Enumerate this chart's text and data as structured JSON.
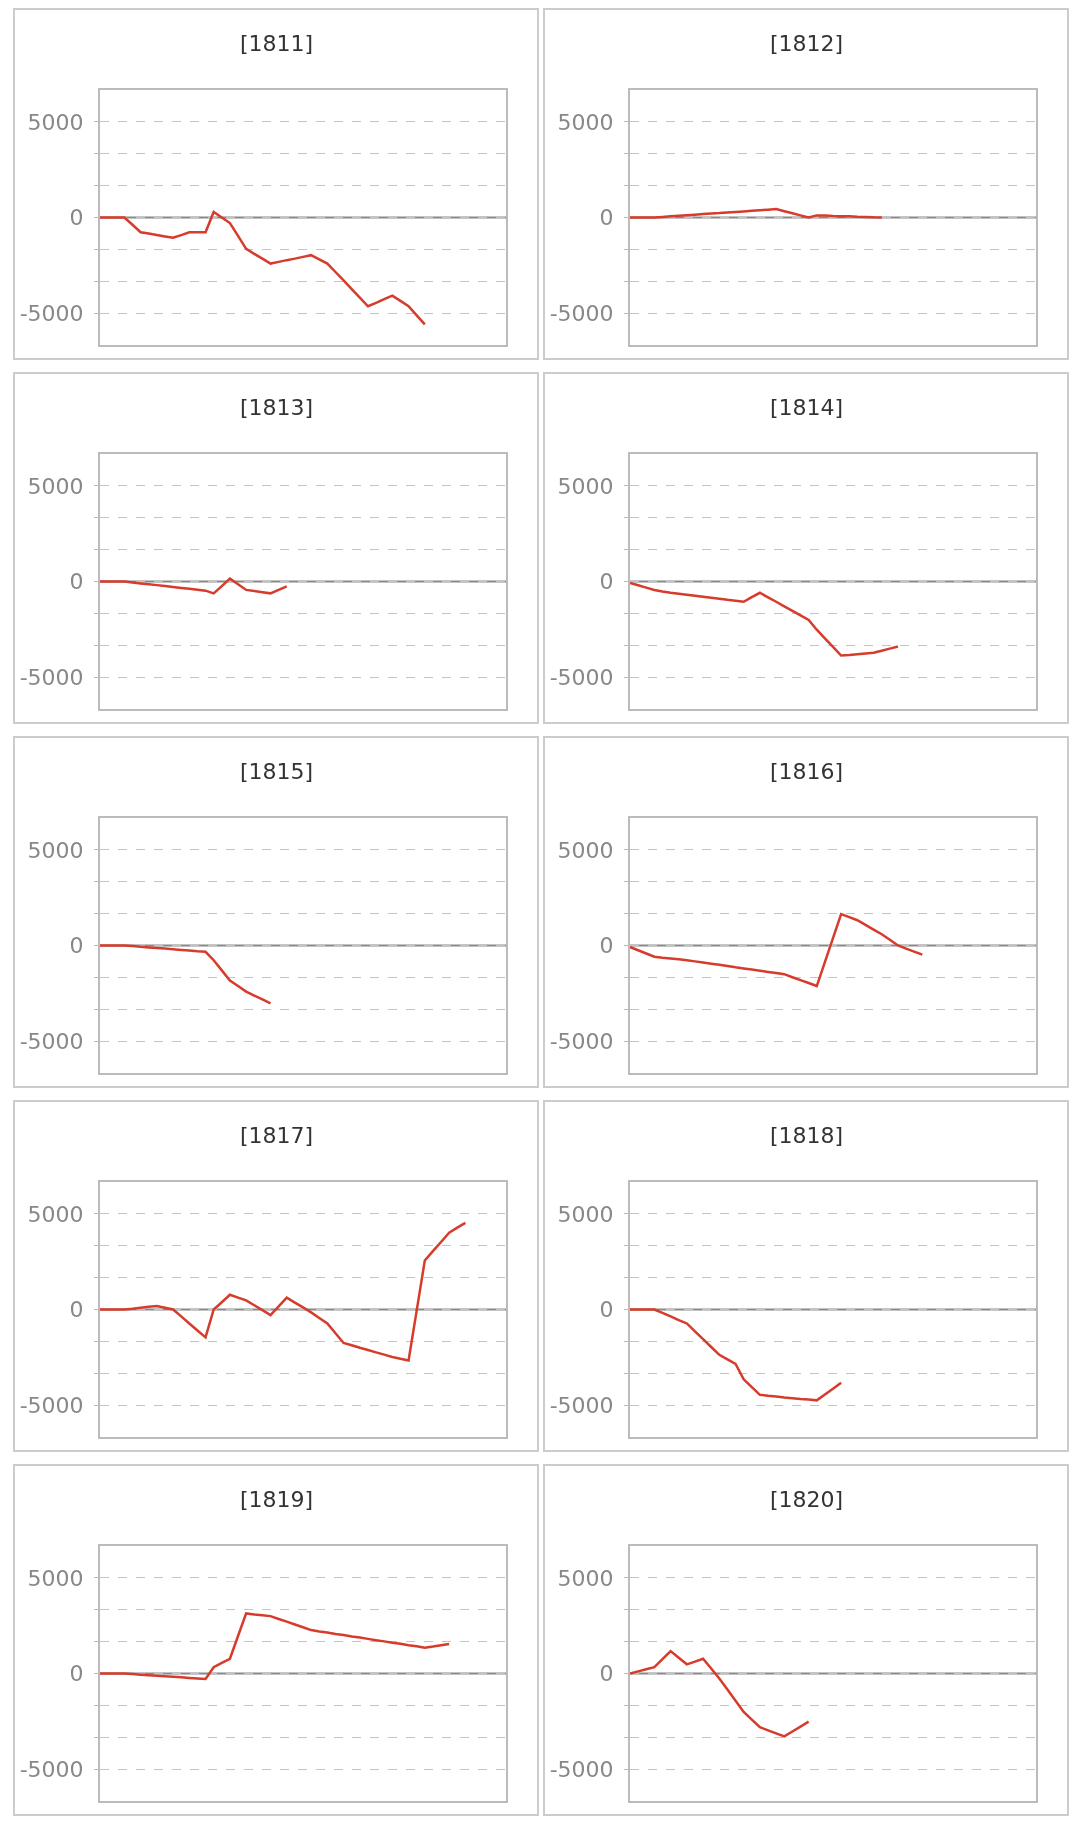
{
  "chart_data": [
    {
      "type": "line",
      "title": "[1811]",
      "categories": [
        null,
        null,
        null,
        null,
        null,
        null,
        null,
        null,
        null,
        null,
        null,
        null,
        null,
        null,
        null,
        null,
        null,
        null,
        null,
        null,
        null,
        null,
        null,
        null,
        null,
        null,
        null,
        null,
        null,
        null,
        null,
        null,
        null,
        null,
        null,
        null,
        null,
        null,
        null,
        null,
        null,
        null,
        null,
        null,
        null,
        null,
        null,
        null,
        null,
        null,
        null
      ],
      "series": [
        {
          "color": "#d63b2b",
          "values": [
            0,
            0,
            0,
            0,
            -380,
            -770,
            -840,
            -920,
            -990,
            -1060,
            -920,
            -770,
            -770,
            -770,
            290,
            0,
            -290,
            -960,
            -1640,
            -1900,
            -2150,
            -2410,
            -2320,
            -2230,
            -2150,
            -2060,
            -1970,
            -2190,
            -2410,
            -2850,
            -3290,
            -3740,
            -4190,
            -4640,
            -4460,
            -4270,
            -4090,
            -4360,
            -4640,
            -5120,
            -5590,
            null,
            null,
            null,
            null,
            null,
            null,
            null,
            null,
            null,
            null
          ]
        }
      ],
      "ylim": [
        -6667,
        6667
      ],
      "yticks": [
        -5000,
        {
          "value": -3333,
          "label": null
        },
        {
          "value": -1667,
          "label": null
        },
        0,
        {
          "value": 1667,
          "label": null
        },
        {
          "value": 3333,
          "label": null
        },
        5000
      ],
      "grid": "y",
      "tick_labels": "y",
      "ref_lines": [
        {
          "axis": "y",
          "value": 0,
          "color": "#888888"
        }
      ]
    },
    {
      "type": "line",
      "title": "[1812]",
      "categories": [
        null,
        null,
        null,
        null,
        null,
        null,
        null,
        null,
        null,
        null,
        null,
        null,
        null,
        null,
        null,
        null,
        null,
        null,
        null,
        null,
        null,
        null,
        null,
        null,
        null,
        null,
        null,
        null,
        null,
        null,
        null,
        null,
        null,
        null,
        null,
        null,
        null,
        null,
        null,
        null,
        null,
        null,
        null,
        null,
        null,
        null,
        null,
        null,
        null,
        null,
        null
      ],
      "series": [
        {
          "color": "#d63b2b",
          "values": [
            0,
            0,
            0,
            0,
            30,
            60,
            90,
            120,
            150,
            180,
            210,
            230,
            260,
            290,
            320,
            350,
            380,
            410,
            440,
            330,
            220,
            110,
            0,
            110,
            100,
            80,
            70,
            60,
            40,
            30,
            10,
            0,
            null,
            null,
            null,
            null,
            null,
            null,
            null,
            null,
            null,
            null,
            null,
            null,
            null,
            null,
            null,
            null,
            null,
            null,
            null
          ]
        }
      ],
      "ylim": [
        -6667,
        6667
      ],
      "yticks": [
        -5000,
        {
          "value": -3333,
          "label": null
        },
        {
          "value": -1667,
          "label": null
        },
        0,
        {
          "value": 1667,
          "label": null
        },
        {
          "value": 3333,
          "label": null
        },
        5000
      ],
      "grid": "y",
      "tick_labels": "y",
      "ref_lines": [
        {
          "axis": "y",
          "value": 0,
          "color": "#888888"
        }
      ]
    },
    {
      "type": "line",
      "title": "[1813]",
      "categories": [
        null,
        null,
        null,
        null,
        null,
        null,
        null,
        null,
        null,
        null,
        null,
        null,
        null,
        null,
        null,
        null,
        null,
        null,
        null,
        null,
        null,
        null,
        null,
        null,
        null,
        null,
        null,
        null,
        null,
        null,
        null,
        null,
        null,
        null,
        null,
        null,
        null,
        null,
        null,
        null,
        null,
        null,
        null,
        null,
        null,
        null,
        null,
        null,
        null,
        null,
        null
      ],
      "series": [
        {
          "color": "#d63b2b",
          "values": [
            0,
            0,
            0,
            0,
            -50,
            -100,
            -140,
            -190,
            -240,
            -290,
            -340,
            -380,
            -430,
            -480,
            -620,
            -240,
            150,
            -140,
            -440,
            -500,
            -560,
            -620,
            -440,
            -260,
            null,
            null,
            null,
            null,
            null,
            null,
            null,
            null,
            null,
            null,
            null,
            null,
            null,
            null,
            null,
            null,
            null,
            null,
            null,
            null,
            null,
            null,
            null,
            null,
            null,
            null,
            null
          ]
        }
      ],
      "ylim": [
        -6667,
        6667
      ],
      "yticks": [
        -5000,
        {
          "value": -3333,
          "label": null
        },
        {
          "value": -1667,
          "label": null
        },
        0,
        {
          "value": 1667,
          "label": null
        },
        {
          "value": 3333,
          "label": null
        },
        5000
      ],
      "grid": "y",
      "tick_labels": "y",
      "ref_lines": [
        {
          "axis": "y",
          "value": 0,
          "color": "#888888"
        }
      ]
    },
    {
      "type": "line",
      "title": "[1814]",
      "categories": [
        null,
        null,
        null,
        null,
        null,
        null,
        null,
        null,
        null,
        null,
        null,
        null,
        null,
        null,
        null,
        null,
        null,
        null,
        null,
        null,
        null,
        null,
        null,
        null,
        null,
        null,
        null,
        null,
        null,
        null,
        null,
        null,
        null,
        null,
        null,
        null,
        null,
        null,
        null,
        null,
        null,
        null,
        null,
        null,
        null,
        null,
        null,
        null,
        null,
        null,
        null
      ],
      "series": [
        {
          "color": "#d63b2b",
          "values": [
            -80,
            -200,
            -320,
            -440,
            -520,
            -590,
            -640,
            -690,
            -750,
            -800,
            -850,
            -900,
            -960,
            -1010,
            -1060,
            -820,
            -590,
            -830,
            -1060,
            -1300,
            -1540,
            -1770,
            -2010,
            -2520,
            -2970,
            -3420,
            -3870,
            -3840,
            -3800,
            -3760,
            -3730,
            -3620,
            -3510,
            -3400,
            null,
            null,
            null,
            null,
            null,
            null,
            null,
            null,
            null,
            null,
            null,
            null,
            null,
            null,
            null,
            null,
            null
          ]
        }
      ],
      "ylim": [
        -6667,
        6667
      ],
      "yticks": [
        -5000,
        {
          "value": -3333,
          "label": null
        },
        {
          "value": -1667,
          "label": null
        },
        0,
        {
          "value": 1667,
          "label": null
        },
        {
          "value": 3333,
          "label": null
        },
        5000
      ],
      "grid": "y",
      "tick_labels": "y",
      "ref_lines": [
        {
          "axis": "y",
          "value": 0,
          "color": "#888888"
        }
      ]
    },
    {
      "type": "line",
      "title": "[1815]",
      "categories": [
        null,
        null,
        null,
        null,
        null,
        null,
        null,
        null,
        null,
        null,
        null,
        null,
        null,
        null,
        null,
        null,
        null,
        null,
        null,
        null,
        null,
        null,
        null,
        null,
        null,
        null,
        null,
        null,
        null,
        null,
        null,
        null,
        null,
        null,
        null,
        null,
        null,
        null,
        null,
        null,
        null,
        null,
        null,
        null,
        null,
        null,
        null,
        null,
        null,
        null,
        null
      ],
      "series": [
        {
          "color": "#d63b2b",
          "values": [
            0,
            0,
            0,
            0,
            -30,
            -70,
            -100,
            -130,
            -160,
            -200,
            -230,
            -260,
            -300,
            -330,
            -770,
            -1300,
            -1830,
            -2120,
            -2410,
            -2620,
            -2820,
            -3030,
            null,
            null,
            null,
            null,
            null,
            null,
            null,
            null,
            null,
            null,
            null,
            null,
            null,
            null,
            null,
            null,
            null,
            null,
            null,
            null,
            null,
            null,
            null,
            null,
            null,
            null,
            null,
            null,
            null
          ]
        }
      ],
      "ylim": [
        -6667,
        6667
      ],
      "yticks": [
        -5000,
        {
          "value": -3333,
          "label": null
        },
        {
          "value": -1667,
          "label": null
        },
        0,
        {
          "value": 1667,
          "label": null
        },
        {
          "value": 3333,
          "label": null
        },
        5000
      ],
      "grid": "y",
      "tick_labels": "y",
      "ref_lines": [
        {
          "axis": "y",
          "value": 0,
          "color": "#888888"
        }
      ]
    },
    {
      "type": "line",
      "title": "[1816]",
      "categories": [
        null,
        null,
        null,
        null,
        null,
        null,
        null,
        null,
        null,
        null,
        null,
        null,
        null,
        null,
        null,
        null,
        null,
        null,
        null,
        null,
        null,
        null,
        null,
        null,
        null,
        null,
        null,
        null,
        null,
        null,
        null,
        null,
        null,
        null,
        null,
        null,
        null,
        null,
        null,
        null,
        null,
        null,
        null,
        null,
        null,
        null,
        null,
        null,
        null,
        null,
        null
      ],
      "series": [
        {
          "color": "#d63b2b",
          "values": [
            -80,
            -250,
            -420,
            -590,
            -640,
            -680,
            -720,
            -770,
            -830,
            -890,
            -950,
            -1010,
            -1070,
            -1140,
            -1200,
            -1260,
            -1320,
            -1380,
            -1440,
            -1500,
            -1660,
            -1810,
            -1960,
            -2120,
            -870,
            390,
            1640,
            1480,
            1320,
            1080,
            830,
            590,
            300,
            0,
            -160,
            -320,
            -480,
            null,
            null,
            null,
            null,
            null,
            null,
            null,
            null,
            null,
            null,
            null,
            null,
            null,
            null
          ]
        }
      ],
      "ylim": [
        -6667,
        6667
      ],
      "yticks": [
        -5000,
        {
          "value": -3333,
          "label": null
        },
        {
          "value": -1667,
          "label": null
        },
        0,
        {
          "value": 1667,
          "label": null
        },
        {
          "value": 3333,
          "label": null
        },
        5000
      ],
      "grid": "y",
      "tick_labels": "y",
      "ref_lines": [
        {
          "axis": "y",
          "value": 0,
          "color": "#888888"
        }
      ]
    },
    {
      "type": "line",
      "title": "[1817]",
      "categories": [
        null,
        null,
        null,
        null,
        null,
        null,
        null,
        null,
        null,
        null,
        null,
        null,
        null,
        null,
        null,
        null,
        null,
        null,
        null,
        null,
        null,
        null,
        null,
        null,
        null,
        null,
        null,
        null,
        null,
        null,
        null,
        null,
        null,
        null,
        null,
        null,
        null,
        null,
        null,
        null,
        null,
        null,
        null,
        null,
        null,
        null,
        null,
        null,
        null,
        null,
        null
      ],
      "series": [
        {
          "color": "#d63b2b",
          "values": [
            0,
            0,
            0,
            0,
            40,
            90,
            140,
            180,
            90,
            0,
            -360,
            -730,
            -1100,
            -1460,
            0,
            380,
            770,
            620,
            480,
            220,
            -30,
            -290,
            160,
            620,
            360,
            110,
            -150,
            -440,
            -730,
            -1240,
            -1750,
            -1870,
            -2000,
            -2120,
            -2240,
            -2360,
            -2480,
            -2580,
            -2670,
            -60,
            2560,
            3050,
            3530,
            4020,
            4280,
            4530,
            null,
            null,
            null,
            null,
            null
          ]
        }
      ],
      "ylim": [
        -6667,
        6667
      ],
      "yticks": [
        -5000,
        {
          "value": -3333,
          "label": null
        },
        {
          "value": -1667,
          "label": null
        },
        0,
        {
          "value": 1667,
          "label": null
        },
        {
          "value": 3333,
          "label": null
        },
        5000
      ],
      "grid": "y",
      "tick_labels": "y",
      "ref_lines": [
        {
          "axis": "y",
          "value": 0,
          "color": "#888888"
        }
      ]
    },
    {
      "type": "line",
      "title": "[1818]",
      "categories": [
        null,
        null,
        null,
        null,
        null,
        null,
        null,
        null,
        null,
        null,
        null,
        null,
        null,
        null,
        null,
        null,
        null,
        null,
        null,
        null,
        null,
        null,
        null,
        null,
        null,
        null,
        null,
        null,
        null,
        null,
        null,
        null,
        null,
        null,
        null,
        null,
        null,
        null,
        null,
        null,
        null,
        null,
        null,
        null,
        null,
        null,
        null,
        null,
        null,
        null,
        null
      ],
      "series": [
        {
          "color": "#d63b2b",
          "values": [
            0,
            0,
            0,
            0,
            -180,
            -360,
            -550,
            -730,
            -1140,
            -1550,
            -1960,
            -2370,
            -2610,
            -2850,
            -3650,
            -4060,
            -4460,
            -4510,
            -4550,
            -4600,
            -4640,
            -4680,
            -4710,
            -4750,
            -4440,
            -4140,
            -3830,
            null,
            null,
            null,
            null,
            null,
            null,
            null,
            null,
            null,
            null,
            null,
            null,
            null,
            null,
            null,
            null,
            null,
            null,
            null,
            null,
            null,
            null,
            null,
            null
          ]
        }
      ],
      "ylim": [
        -6667,
        6667
      ],
      "yticks": [
        -5000,
        {
          "value": -3333,
          "label": null
        },
        {
          "value": -1667,
          "label": null
        },
        0,
        {
          "value": 1667,
          "label": null
        },
        {
          "value": 3333,
          "label": null
        },
        5000
      ],
      "grid": "y",
      "tick_labels": "y",
      "ref_lines": [
        {
          "axis": "y",
          "value": 0,
          "color": "#888888"
        }
      ]
    },
    {
      "type": "line",
      "title": "[1819]",
      "categories": [
        null,
        null,
        null,
        null,
        null,
        null,
        null,
        null,
        null,
        null,
        null,
        null,
        null,
        null,
        null,
        null,
        null,
        null,
        null,
        null,
        null,
        null,
        null,
        null,
        null,
        null,
        null,
        null,
        null,
        null,
        null,
        null,
        null,
        null,
        null,
        null,
        null,
        null,
        null,
        null,
        null,
        null,
        null,
        null,
        null,
        null,
        null,
        null,
        null,
        null,
        null
      ],
      "series": [
        {
          "color": "#d63b2b",
          "values": [
            0,
            0,
            0,
            0,
            -30,
            -60,
            -90,
            -120,
            -140,
            -170,
            -200,
            -230,
            -260,
            -290,
            330,
            550,
            770,
            1960,
            3140,
            3090,
            3050,
            3000,
            2850,
            2710,
            2560,
            2420,
            2270,
            2200,
            2140,
            2070,
            2010,
            1940,
            1880,
            1810,
            1740,
            1680,
            1610,
            1550,
            1480,
            1420,
            1350,
            1410,
            1480,
            1540,
            null,
            null,
            null,
            null,
            null,
            null,
            null
          ]
        }
      ],
      "ylim": [
        -6667,
        6667
      ],
      "yticks": [
        -5000,
        {
          "value": -3333,
          "label": null
        },
        {
          "value": -1667,
          "label": null
        },
        0,
        {
          "value": 1667,
          "label": null
        },
        {
          "value": 3333,
          "label": null
        },
        5000
      ],
      "grid": "y",
      "tick_labels": "y",
      "ref_lines": [
        {
          "axis": "y",
          "value": 0,
          "color": "#888888"
        }
      ]
    },
    {
      "type": "line",
      "title": "[1820]",
      "categories": [
        null,
        null,
        null,
        null,
        null,
        null,
        null,
        null,
        null,
        null,
        null,
        null,
        null,
        null,
        null,
        null,
        null,
        null,
        null,
        null,
        null,
        null,
        null,
        null,
        null,
        null,
        null,
        null,
        null,
        null,
        null,
        null,
        null,
        null,
        null,
        null,
        null,
        null,
        null,
        null,
        null,
        null,
        null,
        null,
        null,
        null,
        null,
        null,
        null,
        null,
        null
      ],
      "series": [
        {
          "color": "#d63b2b",
          "values": [
            0,
            110,
            220,
            330,
            750,
            1170,
            820,
            480,
            620,
            770,
            260,
            -260,
            -840,
            -1430,
            -2010,
            -2410,
            -2810,
            -2970,
            -3130,
            -3290,
            -3030,
            -2780,
            -2520,
            null,
            null,
            null,
            null,
            null,
            null,
            null,
            null,
            null,
            null,
            null,
            null,
            null,
            null,
            null,
            null,
            null,
            null,
            null,
            null,
            null,
            null,
            null,
            null,
            null,
            null,
            null,
            null
          ]
        }
      ],
      "ylim": [
        -6667,
        6667
      ],
      "yticks": [
        -5000,
        {
          "value": -3333,
          "label": null
        },
        {
          "value": -1667,
          "label": null
        },
        0,
        {
          "value": 1667,
          "label": null
        },
        {
          "value": 3333,
          "label": null
        },
        5000
      ],
      "grid": "y",
      "tick_labels": "y",
      "ref_lines": [
        {
          "axis": "y",
          "value": 0,
          "color": "#888888"
        }
      ]
    }
  ]
}
